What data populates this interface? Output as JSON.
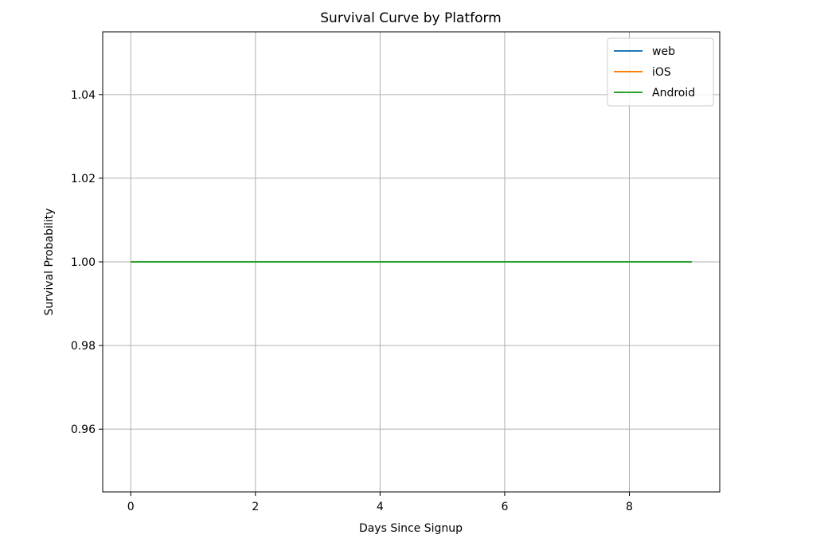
{
  "chart_data": {
    "type": "line",
    "title": "Survival Curve by Platform",
    "xlabel": "Days Since Signup",
    "ylabel": "Survival Probability",
    "xlim": [
      -0.45,
      9.45
    ],
    "ylim": [
      0.945,
      1.055
    ],
    "xticks": [
      0,
      2,
      4,
      6,
      8
    ],
    "xtick_labels": [
      "0",
      "2",
      "4",
      "6",
      "8"
    ],
    "yticks": [
      0.96,
      0.98,
      1.0,
      1.02,
      1.04
    ],
    "ytick_labels": [
      "0.96",
      "0.98",
      "1.00",
      "1.02",
      "1.04"
    ],
    "grid": true,
    "legend_position": "top-right",
    "x": [
      0,
      1,
      2,
      3,
      4,
      5,
      6,
      7,
      8,
      9
    ],
    "series": [
      {
        "name": "web",
        "color": "#1f77b4",
        "values": [
          1.0,
          1.0,
          1.0,
          1.0,
          1.0,
          1.0,
          1.0,
          1.0,
          1.0,
          1.0
        ]
      },
      {
        "name": "iOS",
        "color": "#ff7f0e",
        "values": [
          1.0,
          1.0,
          1.0,
          1.0,
          1.0,
          1.0,
          1.0,
          1.0,
          1.0,
          1.0
        ]
      },
      {
        "name": "Android",
        "color": "#2ca02c",
        "values": [
          1.0,
          1.0,
          1.0,
          1.0,
          1.0,
          1.0,
          1.0,
          1.0,
          1.0,
          1.0
        ]
      }
    ]
  }
}
